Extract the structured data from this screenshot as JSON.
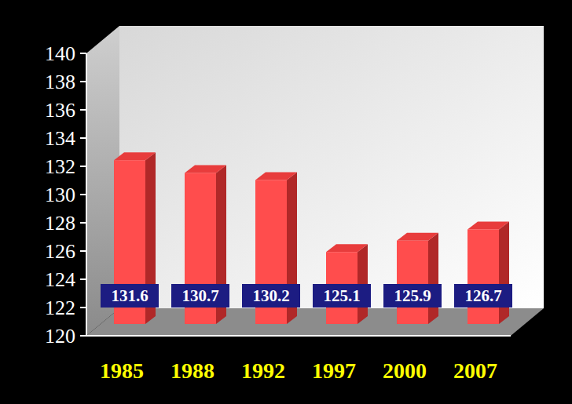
{
  "chart_data": {
    "type": "bar",
    "categories": [
      "1985",
      "1988",
      "1992",
      "1997",
      "2000",
      "2007"
    ],
    "values": [
      131.6,
      130.7,
      130.2,
      125.1,
      125.9,
      126.7
    ],
    "color": "#ff4d4d",
    "ylim": [
      120,
      140
    ],
    "yticks": [
      120,
      122,
      124,
      126,
      128,
      130,
      132,
      134,
      136,
      138,
      140
    ],
    "grid": false,
    "data_labels": true
  }
}
